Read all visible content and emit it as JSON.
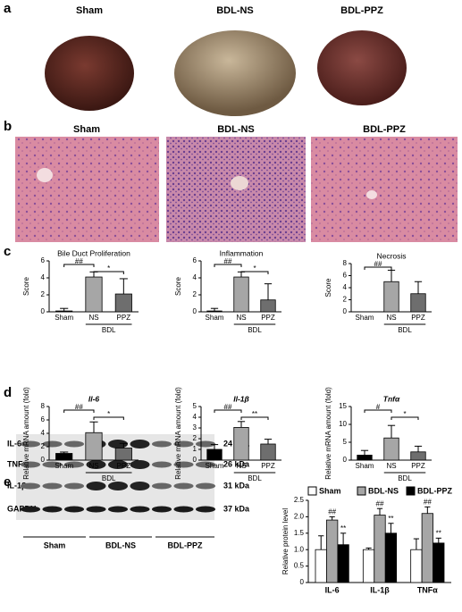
{
  "figure": {
    "panel_labels": [
      "a",
      "b",
      "c",
      "d",
      "e"
    ],
    "photo_titles": [
      "Sham",
      "BDL-NS",
      "BDL-PPZ"
    ],
    "histology_titles": [
      "Sham",
      "BDL-NS",
      "BDL-PPZ"
    ],
    "blot": {
      "proteins": [
        "IL-6",
        "TNFα",
        "IL-1β",
        "GAPDH"
      ],
      "sizes": [
        "24 kDa",
        "26 kDa",
        "31 kDa",
        "37 kDa"
      ],
      "groups": [
        "Sham",
        "BDL-NS",
        "BDL-PPZ"
      ]
    }
  },
  "chart_data": [
    {
      "type": "bar",
      "title": "Bile Duct Proliferation",
      "y_label": "Score",
      "categories": [
        "Sham",
        "NS",
        "PPZ"
      ],
      "group_label": "BDL",
      "values": [
        0.1,
        4.1,
        2.1
      ],
      "errors": [
        0.3,
        0.6,
        1.8
      ],
      "colors": [
        "#000000",
        "#a6a6a6",
        "#6e6e6e"
      ],
      "annotations": [
        "##",
        "*"
      ],
      "ylim": [
        0,
        6
      ],
      "yticks": [
        0,
        2,
        4,
        6
      ]
    },
    {
      "type": "bar",
      "title": "Inflammation",
      "y_label": "Score",
      "categories": [
        "Sham",
        "NS",
        "PPZ"
      ],
      "group_label": "BDL",
      "values": [
        0.1,
        4.1,
        1.4
      ],
      "errors": [
        0.3,
        0.6,
        1.9
      ],
      "colors": [
        "#000000",
        "#a6a6a6",
        "#6e6e6e"
      ],
      "annotations": [
        "##",
        "*"
      ],
      "ylim": [
        0,
        6
      ],
      "yticks": [
        0,
        2,
        4,
        6
      ]
    },
    {
      "type": "bar",
      "title": "Necrosis",
      "y_label": "Score",
      "categories": [
        "Sham",
        "NS",
        "PPZ"
      ],
      "group_label": "BDL",
      "values": [
        0,
        5,
        3
      ],
      "errors": [
        0,
        1.9,
        2
      ],
      "colors": [
        "#000000",
        "#a6a6a6",
        "#6e6e6e"
      ],
      "annotations": [
        "##"
      ],
      "ylim": [
        0,
        8
      ],
      "yticks": [
        0,
        2,
        4,
        6,
        8
      ]
    },
    {
      "type": "bar",
      "title": "Il-6",
      "y_label": "Relative mRNA amount (fold)",
      "categories": [
        "Sham",
        "NS",
        "PPZ"
      ],
      "group_label": "BDL",
      "values": [
        1,
        4.1,
        1.8
      ],
      "errors": [
        0.2,
        1.6,
        0.7
      ],
      "colors": [
        "#000000",
        "#a6a6a6",
        "#6e6e6e"
      ],
      "annotations": [
        "##",
        "*"
      ],
      "ylim": [
        0,
        8
      ],
      "yticks": [
        0,
        2,
        4,
        6,
        8
      ]
    },
    {
      "type": "bar",
      "title": "Il-1β",
      "y_label": "Relative mRNA amount (fold)",
      "categories": [
        "Sham",
        "NS",
        "PPZ"
      ],
      "group_label": "BDL",
      "values": [
        1,
        3.05,
        1.5
      ],
      "errors": [
        0.45,
        0.55,
        0.45
      ],
      "colors": [
        "#000000",
        "#a6a6a6",
        "#6e6e6e"
      ],
      "annotations": [
        "##",
        "**"
      ],
      "ylim": [
        0,
        5
      ],
      "yticks": [
        0,
        1,
        2,
        3,
        4,
        5
      ]
    },
    {
      "type": "bar",
      "title": "Tnfα",
      "y_label": "Relative mRNA amount (fold)",
      "categories": [
        "Sham",
        "NS",
        "PPZ"
      ],
      "group_label": "BDL",
      "values": [
        1.4,
        6.2,
        2.3
      ],
      "errors": [
        1.3,
        3.5,
        1.6
      ],
      "colors": [
        "#000000",
        "#a6a6a6",
        "#6e6e6e"
      ],
      "annotations": [
        "#",
        "*"
      ],
      "ylim": [
        0,
        15
      ],
      "yticks": [
        0,
        5,
        10,
        15
      ]
    },
    {
      "type": "grouped_bar",
      "y_label": "Relative protein level",
      "categories": [
        "IL-6",
        "IL-1β",
        "TNFα"
      ],
      "series": [
        {
          "name": "Sham",
          "color": "#ffffff",
          "values": [
            1,
            1,
            1
          ],
          "errors": [
            0.42,
            0.05,
            0.33
          ]
        },
        {
          "name": "BDL-NS",
          "color": "#a6a6a6",
          "values": [
            1.9,
            2.05,
            2.1
          ],
          "errors": [
            0.1,
            0.2,
            0.2
          ],
          "annotations": [
            "##",
            "##",
            "##"
          ]
        },
        {
          "name": "BDL-PPZ",
          "color": "#000000",
          "values": [
            1.15,
            1.5,
            1.2
          ],
          "errors": [
            0.35,
            0.3,
            0.15
          ],
          "annotations": [
            "**",
            "**",
            "**"
          ]
        }
      ],
      "ylim": [
        0,
        2.5
      ],
      "yticks": [
        0,
        0.5,
        {
          "value": 1,
          "label": "1.0"
        },
        1.5,
        {
          "value": 2,
          "label": "2.0"
        },
        2.5
      ]
    }
  ]
}
